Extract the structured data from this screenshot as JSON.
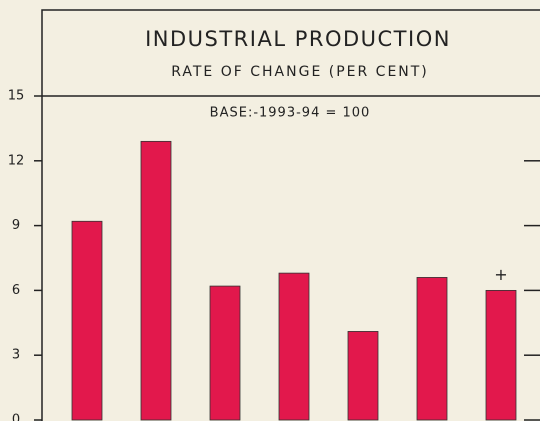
{
  "chart_data": {
    "type": "bar",
    "title": "INDUSTRIAL PRODUCTION",
    "subtitle": "RATE OF CHANGE (PER CENT)",
    "annotations": [
      "BASE:-1993-94 = 100",
      "+"
    ],
    "categories": [
      null,
      null,
      null,
      null,
      null,
      null,
      null
    ],
    "values": [
      9.2,
      12.9,
      6.2,
      6.8,
      4.1,
      6.6,
      6.0
    ],
    "color": "#e2184c",
    "ylim": [
      0,
      15
    ],
    "yticks": [
      0,
      3,
      6,
      9,
      12,
      15
    ],
    "grid": false
  }
}
